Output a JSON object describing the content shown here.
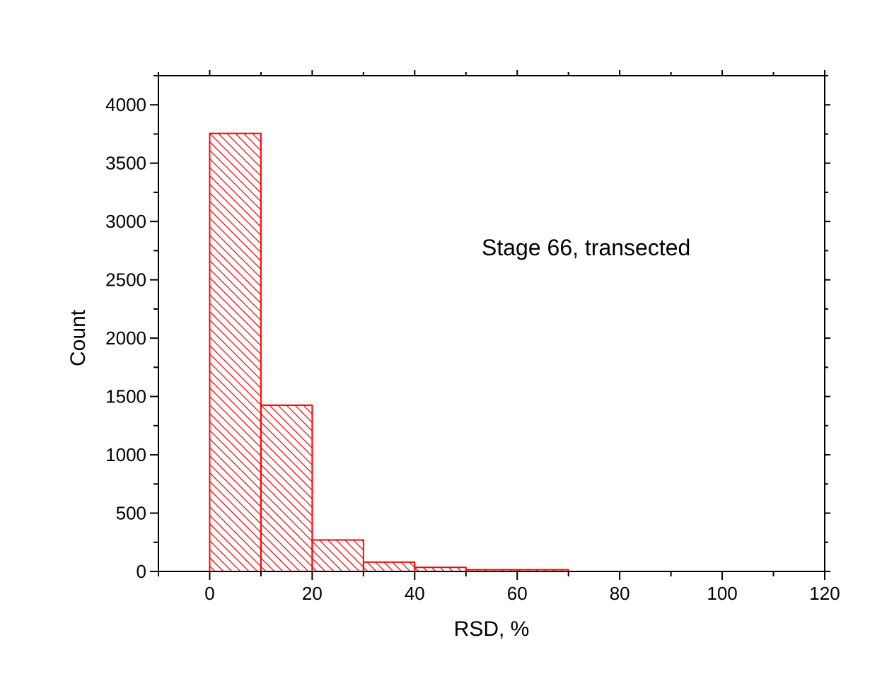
{
  "chart_data": {
    "type": "histogram",
    "bins": [
      {
        "x0": 0,
        "x1": 10,
        "count": 3755
      },
      {
        "x0": 10,
        "x1": 20,
        "count": 1425
      },
      {
        "x0": 20,
        "x1": 30,
        "count": 270
      },
      {
        "x0": 30,
        "x1": 40,
        "count": 80
      },
      {
        "x0": 40,
        "x1": 50,
        "count": 35
      },
      {
        "x0": 50,
        "x1": 60,
        "count": 15
      },
      {
        "x0": 60,
        "x1": 70,
        "count": 15
      }
    ],
    "title": "",
    "annotation": "Stage 66, transected",
    "xlabel": "RSD, %",
    "ylabel": "Count",
    "xlim": [
      -10,
      120
    ],
    "ylim": [
      0,
      4250
    ],
    "xticks": [
      0,
      20,
      40,
      60,
      80,
      100,
      120
    ],
    "yticks": [
      0,
      500,
      1000,
      1500,
      2000,
      2500,
      3000,
      3500,
      4000
    ],
    "bar_color": "#ff0000",
    "fill": "diagonal-hatch",
    "grid": false,
    "legend": "none"
  }
}
